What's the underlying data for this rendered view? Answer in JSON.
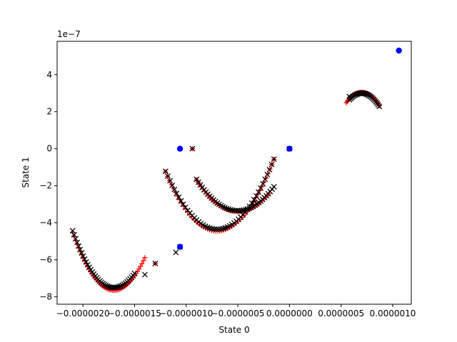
{
  "chart_data": {
    "type": "scatter",
    "xlabel": "State 0",
    "ylabel": "State 1",
    "y_offset_text": "1e−7",
    "xlim": [
      -2.25e-06,
      1.18e-06
    ],
    "ylim": [
      -8.4,
      5.8
    ],
    "x_ticks": [
      {
        "value": -2e-06,
        "label": "−0.0000020"
      },
      {
        "value": -1.5e-06,
        "label": "−0.0000015"
      },
      {
        "value": -1e-06,
        "label": "−0.0000010"
      },
      {
        "value": -5e-07,
        "label": "−0.0000005"
      },
      {
        "value": 0.0,
        "label": "0.0000000"
      },
      {
        "value": 5e-07,
        "label": "0.0000005"
      },
      {
        "value": 1e-06,
        "label": "0.0000010"
      }
    ],
    "y_ticks": [
      {
        "value": -8,
        "label": "−8"
      },
      {
        "value": -6,
        "label": "−6"
      },
      {
        "value": -4,
        "label": "−4"
      },
      {
        "value": -2,
        "label": "−2"
      },
      {
        "value": 0,
        "label": "0"
      },
      {
        "value": 2,
        "label": "2"
      },
      {
        "value": 4,
        "label": "4"
      }
    ],
    "grid": false,
    "colors": {
      "blue": "#0000ff",
      "red": "#ff0000",
      "black": "#000000"
    },
    "series": [
      {
        "marker": "circle",
        "color": "#0000ff",
        "points": [
          {
            "x": 1.06e-06,
            "y": 5.3
          },
          {
            "x": -1.06e-06,
            "y": 0
          },
          {
            "x": 0.0,
            "y": 0
          },
          {
            "x": -1.06e-06,
            "y": -5.3
          }
        ]
      },
      {
        "marker": "plus",
        "color": "#ff0000",
        "points": [
          {
            "x": -9.4e-07,
            "y": 0
          },
          {
            "x": 0.0,
            "y": 0
          },
          {
            "x": -1.06e-06,
            "y": -5.3
          },
          {
            "x": 7e-07,
            "y": 3.05
          },
          {
            "x": -1.3e-06,
            "y": -6.2
          }
        ],
        "curves": [
          {
            "x_start": 5.5e-07,
            "x_end": 8.7e-07,
            "center": 7e-07,
            "amp": 3.05,
            "half_width": 2.2e-07,
            "curvature": 1.0,
            "n": 32
          },
          {
            "x_start": -2.1e-06,
            "x_end": -1.4e-06,
            "center": -1.7e-06,
            "amp": -7.65,
            "half_width": 5e-07,
            "curvature": 1.6,
            "n": 50
          },
          {
            "x_start": -9e-07,
            "x_end": -2e-07,
            "center": -5e-07,
            "amp": -3.4,
            "half_width": 4.5e-07,
            "curvature": 1.6,
            "n": 45
          },
          {
            "x_start": -1.2e-06,
            "x_end": -1.5e-07,
            "center": -7e-07,
            "amp": -4.45,
            "half_width": 5e-07,
            "curvature": 1.8,
            "n": 55
          }
        ]
      },
      {
        "marker": "x",
        "color": "#000000",
        "points": [
          {
            "x": -9.4e-07,
            "y": 0
          },
          {
            "x": 0.0,
            "y": 0
          },
          {
            "x": -1.06e-06,
            "y": -5.3
          },
          {
            "x": -1.1e-06,
            "y": -5.6
          },
          {
            "x": -1.3e-06,
            "y": -6.2
          },
          {
            "x": -1.4e-06,
            "y": -6.8
          },
          {
            "x": 5.8e-07,
            "y": 2.82
          }
        ],
        "curves": [
          {
            "x_start": 5.8e-07,
            "x_end": 8.7e-07,
            "center": 7e-07,
            "amp": 3.0,
            "half_width": 2.2e-07,
            "curvature": 1.0,
            "n": 28
          },
          {
            "x_start": -2.1e-06,
            "x_end": -1.5e-06,
            "center": -1.7e-06,
            "amp": -7.5,
            "half_width": 5e-07,
            "curvature": 1.6,
            "n": 42
          },
          {
            "x_start": -9e-07,
            "x_end": -1.5e-07,
            "center": -5e-07,
            "amp": -3.35,
            "half_width": 4.5e-07,
            "curvature": 1.6,
            "n": 42
          },
          {
            "x_start": -1.2e-06,
            "x_end": -1.5e-07,
            "center": -7e-07,
            "amp": -4.35,
            "half_width": 5e-07,
            "curvature": 1.8,
            "n": 50
          }
        ]
      }
    ]
  }
}
